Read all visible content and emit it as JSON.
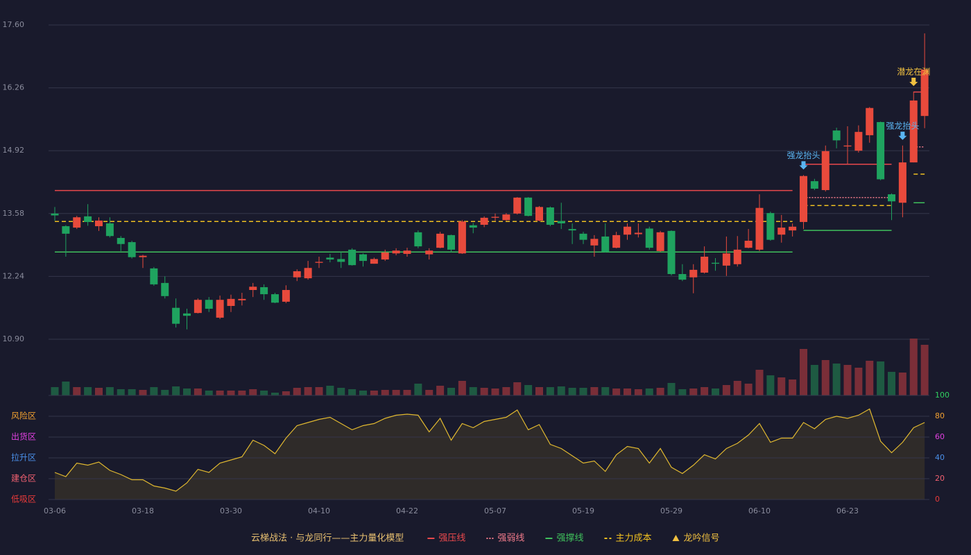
{
  "chart_data": [
    {
      "type": "candlestick",
      "ylim": [
        10.9,
        17.6
      ],
      "yticks": [
        {
          "value": 10.9,
          "label": "10.90"
        },
        12.24,
        13.58,
        14.92,
        16.26,
        {
          "value": 17.6,
          "label": "17.60"
        }
      ],
      "grid": true,
      "up_color": "#e84a3c",
      "down_color": "#1fa35f",
      "open": [
        13.58,
        13.31,
        13.28,
        13.52,
        13.31,
        13.37,
        13.06,
        12.97,
        12.65,
        12.41,
        12.1,
        11.57,
        11.45,
        11.46,
        11.74,
        11.36,
        11.61,
        11.73,
        11.95,
        12.01,
        11.86,
        11.7,
        12.22,
        12.2,
        12.53,
        12.64,
        12.61,
        12.81,
        12.71,
        12.51,
        12.6,
        12.73,
        12.72,
        13.18,
        12.71,
        12.85,
        13.12,
        12.73,
        13.33,
        13.34,
        13.49,
        13.44,
        13.58,
        13.92,
        13.43,
        13.71,
        13.42,
        13.25,
        13.15,
        12.9,
        13.09,
        12.85,
        13.13,
        13.14,
        13.26,
        12.78,
        13.21,
        12.29,
        12.22,
        12.32,
        12.53,
        12.47,
        12.5,
        12.85,
        12.81,
        13.59,
        13.13,
        13.22,
        13.4,
        14.27,
        14.08,
        15.35,
        15.01,
        14.92,
        15.25,
        15.53,
        13.99,
        13.81,
        14.67,
        15.66
      ],
      "high": [
        13.72,
        13.33,
        13.53,
        13.78,
        13.5,
        13.5,
        13.1,
        13.0,
        12.7,
        12.44,
        12.24,
        11.77,
        11.55,
        11.77,
        11.8,
        11.83,
        11.85,
        11.89,
        12.1,
        12.07,
        11.89,
        12.05,
        12.39,
        12.57,
        12.66,
        12.72,
        12.76,
        12.84,
        12.73,
        12.64,
        12.81,
        12.84,
        12.85,
        13.22,
        12.84,
        13.19,
        13.13,
        13.44,
        13.38,
        13.52,
        13.58,
        13.59,
        13.93,
        13.93,
        13.74,
        13.73,
        13.81,
        13.37,
        13.19,
        13.12,
        13.37,
        13.19,
        13.37,
        13.37,
        13.3,
        13.21,
        13.22,
        12.5,
        12.5,
        12.88,
        12.63,
        13.09,
        13.1,
        13.25,
        13.99,
        13.62,
        13.55,
        13.37,
        14.4,
        14.32,
        15.03,
        15.41,
        15.44,
        15.46,
        15.85,
        15.54,
        14.01,
        15.03,
        16.18,
        17.42
      ],
      "low": [
        13.43,
        12.66,
        13.25,
        13.32,
        13.21,
        13.07,
        12.78,
        12.62,
        12.42,
        12.04,
        11.77,
        11.15,
        11.11,
        11.45,
        11.48,
        11.33,
        11.48,
        11.62,
        11.8,
        11.74,
        11.67,
        11.67,
        12.14,
        12.17,
        12.42,
        12.54,
        12.42,
        12.47,
        12.45,
        12.51,
        12.57,
        12.69,
        12.66,
        12.84,
        12.6,
        12.84,
        12.75,
        12.72,
        13.16,
        13.29,
        13.43,
        13.43,
        13.56,
        13.52,
        13.41,
        13.31,
        13.25,
        12.93,
        12.93,
        12.66,
        12.75,
        12.84,
        13.02,
        13.07,
        12.81,
        12.76,
        12.26,
        12.14,
        11.88,
        12.3,
        12.36,
        12.25,
        12.45,
        12.84,
        12.78,
        13.0,
        12.96,
        13.09,
        13.25,
        14.08,
        14.05,
        14.97,
        14.64,
        14.88,
        15.09,
        14.29,
        13.44,
        13.5,
        14.67,
        15.4
      ],
      "close": [
        13.54,
        13.15,
        13.5,
        13.4,
        13.43,
        13.1,
        12.93,
        12.65,
        12.68,
        12.07,
        11.82,
        11.23,
        11.4,
        11.74,
        11.55,
        11.74,
        11.76,
        11.76,
        12.02,
        11.86,
        11.68,
        11.95,
        12.35,
        12.42,
        12.55,
        12.6,
        12.55,
        12.48,
        12.57,
        12.61,
        12.75,
        12.79,
        12.79,
        12.88,
        12.79,
        13.15,
        12.81,
        13.41,
        13.28,
        13.49,
        13.51,
        13.56,
        13.92,
        13.53,
        13.72,
        13.34,
        13.37,
        13.22,
        13.02,
        13.04,
        12.76,
        13.12,
        13.3,
        13.17,
        12.85,
        13.18,
        12.29,
        12.17,
        12.38,
        12.66,
        12.51,
        12.73,
        12.81,
        13.0,
        13.7,
        13.02,
        13.28,
        13.3,
        14.38,
        14.11,
        14.91,
        15.14,
        15.03,
        15.32,
        15.83,
        14.31,
        13.84,
        14.67,
        15.99,
        16.65
      ],
      "series": [
        {
          "name": "强压线",
          "color": "#e8484c",
          "dash": "solid",
          "values": [
            14.07,
            14.07,
            14.07,
            14.07,
            14.07,
            14.07,
            14.07,
            14.07,
            14.07,
            14.07,
            14.07,
            14.07,
            14.07,
            14.07,
            14.07,
            14.07,
            14.07,
            14.07,
            14.07,
            14.07,
            14.07,
            14.07,
            14.07,
            14.07,
            14.07,
            14.07,
            14.07,
            14.07,
            14.07,
            14.07,
            14.07,
            14.07,
            14.07,
            14.07,
            14.07,
            14.07,
            14.07,
            14.07,
            14.07,
            14.07,
            14.07,
            14.07,
            14.07,
            14.07,
            14.07,
            14.07,
            14.07,
            14.07,
            14.07,
            14.07,
            14.07,
            14.07,
            14.07,
            14.07,
            14.07,
            14.07,
            14.07,
            14.07,
            14.07,
            14.07,
            14.07,
            14.07,
            14.07,
            14.07,
            14.07,
            14.07,
            14.07,
            14.07,
            14.63,
            14.63,
            14.63,
            14.63,
            14.63,
            14.63,
            14.63,
            14.63,
            14.63,
            null,
            16.17,
            16.17
          ]
        },
        {
          "name": "强弱线",
          "color": "#f07a8a",
          "dash": "dotted",
          "values": [
            null,
            null,
            null,
            null,
            null,
            null,
            null,
            null,
            null,
            null,
            null,
            null,
            null,
            null,
            null,
            null,
            null,
            null,
            null,
            null,
            null,
            null,
            null,
            null,
            null,
            null,
            null,
            null,
            null,
            null,
            null,
            null,
            null,
            null,
            null,
            null,
            null,
            null,
            null,
            null,
            null,
            null,
            null,
            null,
            null,
            null,
            null,
            null,
            null,
            null,
            null,
            null,
            null,
            null,
            null,
            null,
            null,
            null,
            null,
            null,
            null,
            null,
            null,
            null,
            null,
            null,
            null,
            null,
            13.92,
            13.92,
            13.92,
            13.92,
            13.92,
            13.92,
            13.92,
            13.92,
            13.92,
            null,
            15.0,
            15.0
          ]
        },
        {
          "name": "强撑线",
          "color": "#3fc05c",
          "dash": "solid",
          "values": [
            12.76,
            12.76,
            12.76,
            12.76,
            12.76,
            12.76,
            12.76,
            12.76,
            12.76,
            12.76,
            12.76,
            12.76,
            12.76,
            12.76,
            12.76,
            12.76,
            12.76,
            12.76,
            12.76,
            12.76,
            12.76,
            12.76,
            12.76,
            12.76,
            12.76,
            12.76,
            12.76,
            12.76,
            12.76,
            12.76,
            12.76,
            12.76,
            12.76,
            12.76,
            12.76,
            12.76,
            12.76,
            12.76,
            12.76,
            12.76,
            12.76,
            12.76,
            12.76,
            12.76,
            12.76,
            12.76,
            12.76,
            12.76,
            12.76,
            12.76,
            12.76,
            12.76,
            12.76,
            12.76,
            12.76,
            12.76,
            12.76,
            12.76,
            12.76,
            12.76,
            12.76,
            12.76,
            12.76,
            12.76,
            12.76,
            12.76,
            12.76,
            12.76,
            13.22,
            13.22,
            13.22,
            13.22,
            13.22,
            13.22,
            13.22,
            13.22,
            13.22,
            null,
            13.81,
            13.81
          ]
        },
        {
          "name": "主力成本",
          "color": "#f0c020",
          "dash": "dashed",
          "values": [
            13.41,
            13.41,
            13.41,
            13.41,
            13.41,
            13.41,
            13.41,
            13.41,
            13.41,
            13.41,
            13.41,
            13.41,
            13.41,
            13.41,
            13.41,
            13.41,
            13.41,
            13.41,
            13.41,
            13.41,
            13.41,
            13.41,
            13.41,
            13.41,
            13.41,
            13.41,
            13.41,
            13.41,
            13.41,
            13.41,
            13.41,
            13.41,
            13.41,
            13.41,
            13.41,
            13.41,
            13.41,
            13.41,
            13.41,
            13.41,
            13.41,
            13.41,
            13.41,
            13.41,
            13.41,
            13.41,
            13.41,
            13.41,
            13.41,
            13.41,
            13.41,
            13.41,
            13.41,
            13.41,
            13.41,
            13.41,
            13.41,
            13.41,
            13.41,
            13.41,
            13.41,
            13.41,
            13.41,
            13.41,
            13.41,
            13.41,
            13.41,
            13.41,
            13.75,
            13.75,
            13.75,
            13.75,
            13.75,
            13.75,
            13.75,
            13.75,
            13.75,
            null,
            14.42,
            14.42
          ]
        }
      ],
      "signals": [
        null,
        null,
        null,
        null,
        null,
        null,
        null,
        null,
        null,
        null,
        null,
        null,
        null,
        null,
        null,
        null,
        null,
        null,
        null,
        null,
        null,
        null,
        null,
        null,
        null,
        null,
        null,
        null,
        null,
        null,
        null,
        null,
        null,
        null,
        null,
        null,
        null,
        null,
        null,
        null,
        null,
        null,
        null,
        null,
        null,
        null,
        null,
        null,
        null,
        null,
        null,
        null,
        null,
        null,
        null,
        null,
        null,
        null,
        null,
        null,
        null,
        null,
        null,
        null,
        null,
        null,
        null,
        null,
        {
          "text": "强龙抬头",
          "color": "#5ab4f0"
        },
        null,
        null,
        null,
        null,
        null,
        null,
        null,
        null,
        {
          "text": "强龙抬头",
          "color": "#5ab4f0"
        },
        {
          "text": "潜龙在渊",
          "color": "#f0c040"
        },
        null
      ],
      "legend_title": "云梯战法 · 与龙同行——主力量化模型",
      "signal_name": "龙吟信号",
      "signal_color": "#f0c040"
    },
    {
      "type": "bar",
      "ylim": [
        0,
        82
      ],
      "up_color": "#7a2e38",
      "down_color": "#1e5a42",
      "values": [
        12,
        20,
        12,
        12,
        11,
        12,
        9,
        9,
        8,
        12,
        8,
        13,
        10,
        10,
        7,
        7,
        7,
        7,
        9,
        7,
        4,
        6,
        11,
        12,
        12,
        14,
        11,
        9,
        7,
        7,
        8,
        8,
        8,
        17,
        8,
        14,
        11,
        21,
        12,
        11,
        10,
        12,
        19,
        15,
        12,
        12,
        13,
        11,
        11,
        12,
        12,
        10,
        10,
        9,
        10,
        11,
        18,
        9,
        10,
        12,
        10,
        15,
        21,
        17,
        37,
        29,
        26,
        23,
        67,
        44,
        51,
        46,
        44,
        40,
        50,
        49,
        34,
        33,
        82,
        73
      ]
    },
    {
      "type": "area",
      "ylim": [
        0,
        100
      ],
      "color": "#e0b830",
      "fill": "#2f2b29",
      "yticks": [
        0,
        20,
        40,
        60,
        80,
        100
      ],
      "ytick_colors": [
        "#e83a3a",
        "#f06070",
        "#4a8fe8",
        "#e040e0",
        "#f0a030",
        "#30d060"
      ],
      "zones": [
        {
          "value": 80,
          "label": "风险区"
        },
        {
          "value": 60,
          "label": "出货区"
        },
        {
          "value": 40,
          "label": "拉升区"
        },
        {
          "value": 20,
          "label": "建仓区"
        },
        {
          "value": 0,
          "label": "低吸区"
        }
      ],
      "zone_colors": [
        "#f0a030",
        "#e040e0",
        "#4a8fe8",
        "#f06070",
        "#e83a3a"
      ],
      "categories": [
        "03-06",
        null,
        null,
        null,
        null,
        null,
        null,
        null,
        "03-18",
        null,
        null,
        null,
        null,
        null,
        null,
        null,
        "03-30",
        null,
        null,
        null,
        null,
        null,
        null,
        null,
        "04-10",
        null,
        null,
        null,
        null,
        null,
        null,
        null,
        "04-22",
        null,
        null,
        null,
        null,
        null,
        null,
        null,
        "05-07",
        null,
        null,
        null,
        null,
        null,
        null,
        null,
        "05-19",
        null,
        null,
        null,
        null,
        null,
        null,
        null,
        "05-29",
        null,
        null,
        null,
        null,
        null,
        null,
        null,
        "06-10",
        null,
        null,
        null,
        null,
        null,
        null,
        null,
        "06-23",
        null,
        null,
        null,
        null,
        null,
        null,
        null
      ],
      "values": [
        26,
        22,
        35,
        33,
        36,
        28,
        24,
        19,
        19,
        13,
        11,
        8,
        16,
        29,
        26,
        35,
        38,
        41,
        57,
        52,
        44,
        59,
        71,
        74,
        77,
        79,
        73,
        67,
        71,
        73,
        78,
        81,
        82,
        81,
        65,
        78,
        57,
        73,
        69,
        75,
        77,
        79,
        86,
        67,
        72,
        53,
        49,
        42,
        35,
        37,
        27,
        43,
        51,
        49,
        35,
        49,
        31,
        25,
        33,
        43,
        39,
        49,
        54,
        62,
        73,
        55,
        59,
        59,
        74,
        68,
        77,
        80,
        78,
        81,
        87,
        56,
        45,
        55,
        69,
        74
      ]
    }
  ]
}
